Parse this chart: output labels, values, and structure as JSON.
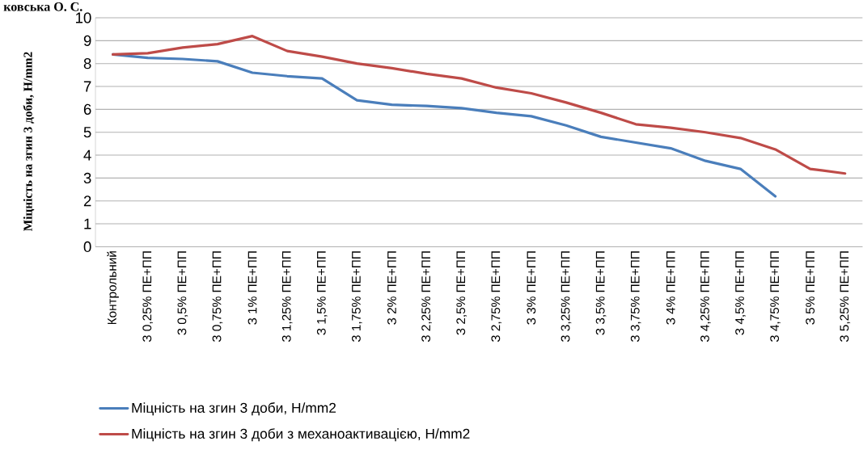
{
  "chart_data": {
    "type": "line",
    "ylabel": "Міцність на згин 3 доби, Н/mm2",
    "annotations": [
      "ковська О. С."
    ],
    "categories": [
      "Контрольний",
      "З 0,25% ПЕ+ПП",
      "З 0,5% ПЕ+ПП",
      "З 0,75% ПЕ+ПП",
      "З 1% ПЕ+ПП",
      "З 1,25% ПЕ+ПП",
      "З 1,5% ПЕ+ПП",
      "З 1,75% ПЕ+ПП",
      "З 2% ПЕ+ПП",
      "З 2,25% ПЕ+ПП",
      "З 2,5% ПЕ+ПП",
      "З 2,75% ПЕ+ПП",
      "З 3% ПЕ+ПП",
      "З 3,25% ПЕ+ПП",
      "З 3,5% ПЕ+ПП",
      "З 3,75% ПЕ+ПП",
      "З 4% ПЕ+ПП",
      "З 4,25% ПЕ+ПП",
      "З 4,5% ПЕ+ПП",
      "З 4,75% ПЕ+ПП",
      "З 5% ПЕ+ПП",
      "З 5,25% ПЕ+ПП"
    ],
    "series": [
      {
        "name": "Міцність на згин 3 доби, Н/mm2",
        "color": "#4a7ebb",
        "values": [
          8.4,
          8.25,
          8.2,
          8.1,
          7.6,
          7.45,
          7.35,
          6.4,
          6.2,
          6.15,
          6.05,
          5.85,
          5.7,
          5.3,
          4.8,
          4.55,
          4.3,
          3.75,
          3.4,
          2.2,
          null,
          null
        ]
      },
      {
        "name": "Міцність на згин 3 доби з механоактивацією, Н/mm2",
        "color": "#be4b48",
        "values": [
          8.4,
          8.45,
          8.7,
          8.85,
          9.2,
          8.55,
          8.3,
          8.0,
          7.8,
          7.55,
          7.35,
          6.95,
          6.7,
          6.3,
          5.85,
          5.35,
          5.2,
          5.0,
          4.75,
          4.25,
          3.4,
          3.2
        ]
      }
    ],
    "ylim": [
      0,
      10
    ],
    "yticks": [
      0,
      1,
      2,
      3,
      4,
      5,
      6,
      7,
      8,
      9,
      10
    ],
    "grid": "y",
    "legend": "bottom",
    "marker": "none",
    "line_style": "solid"
  }
}
